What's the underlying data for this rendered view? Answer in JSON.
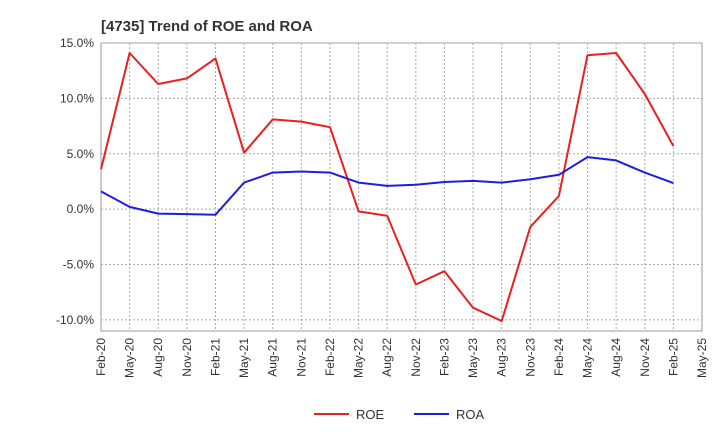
{
  "chart_data": {
    "type": "line",
    "title": "[4735]  Trend of ROE and ROA",
    "xlabel": "",
    "ylabel": "",
    "categories": [
      "Feb-20",
      "May-20",
      "Aug-20",
      "Nov-20",
      "Feb-21",
      "May-21",
      "Aug-21",
      "Nov-21",
      "Feb-22",
      "May-22",
      "Aug-22",
      "Nov-22",
      "Feb-23",
      "May-23",
      "Aug-23",
      "Nov-23",
      "Feb-24",
      "May-24",
      "Aug-24",
      "Nov-24",
      "Feb-25",
      "May-25"
    ],
    "y_ticks": [
      "15.0%",
      "10.0%",
      "5.0%",
      "0.0%",
      "-5.0%",
      "-10.0%"
    ],
    "ylim": [
      -11,
      15
    ],
    "grid": true,
    "legend_position": "bottom",
    "series": [
      {
        "name": "ROE",
        "color": "#e8201f",
        "values": [
          3.6,
          14.1,
          11.3,
          11.8,
          13.6,
          5.1,
          8.1,
          7.9,
          7.4,
          -0.2,
          -0.6,
          -6.8,
          -5.6,
          -8.9,
          -10.1,
          -1.6,
          1.2,
          13.9,
          14.1,
          10.4,
          5.7,
          null
        ]
      },
      {
        "name": "ROA",
        "color": "#1e1ee0",
        "values": [
          1.6,
          0.2,
          -0.4,
          -0.45,
          -0.5,
          2.4,
          3.3,
          3.4,
          3.3,
          2.4,
          2.1,
          2.2,
          2.45,
          2.55,
          2.4,
          2.7,
          3.1,
          4.7,
          4.4,
          3.3,
          2.35,
          null
        ]
      }
    ]
  }
}
